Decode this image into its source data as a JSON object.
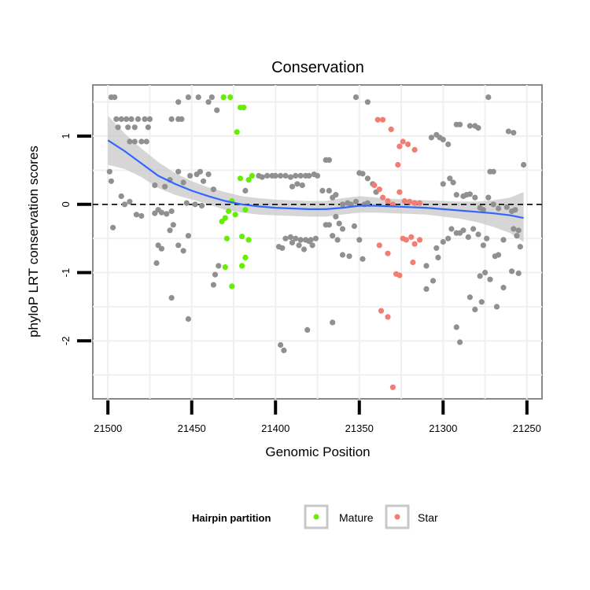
{
  "chart_data": {
    "type": "scatter",
    "title": "Conservation",
    "xlabel": "Genomic Position",
    "ylabel": "phyloP LRT conservation scores",
    "x_reversed": true,
    "xlim": [
      21509,
      21241
    ],
    "ylim": [
      -2.85,
      1.75
    ],
    "x_ticks": [
      21500,
      21450,
      21400,
      21350,
      21300,
      21250
    ],
    "y_ticks": [
      -2,
      -1,
      0,
      1
    ],
    "reference_line": {
      "y": 0,
      "style": "dashed"
    },
    "legend": {
      "title": "Hairpin partition",
      "position": "bottom",
      "entries": [
        {
          "label": "Mature",
          "color": "#66ee00"
        },
        {
          "label": "Star",
          "color": "#f27d72"
        }
      ]
    },
    "colors": {
      "background": "#66ee00",
      "other": "#909090",
      "mature": "#66ee00",
      "star": "#f27d72",
      "smooth": "#3366ff",
      "band": "#c8c8c8"
    },
    "series": [
      {
        "name": "Other",
        "color": "#909090",
        "points": [
          [
            21498,
            1.57
          ],
          [
            21496,
            1.57
          ],
          [
            21495,
            1.25
          ],
          [
            21492,
            1.25
          ],
          [
            21489,
            1.25
          ],
          [
            21486,
            1.25
          ],
          [
            21482,
            1.25
          ],
          [
            21478,
            1.25
          ],
          [
            21475,
            1.25
          ],
          [
            21494,
            1.13
          ],
          [
            21488,
            1.13
          ],
          [
            21484,
            1.13
          ],
          [
            21476,
            1.13
          ],
          [
            21462,
            1.25
          ],
          [
            21458,
            1.25
          ],
          [
            21456,
            1.25
          ],
          [
            21487,
            0.92
          ],
          [
            21484,
            0.92
          ],
          [
            21480,
            0.92
          ],
          [
            21477,
            0.92
          ],
          [
            21452,
            1.57
          ],
          [
            21458,
            1.5
          ],
          [
            21446,
            1.57
          ],
          [
            21440,
            1.5
          ],
          [
            21438,
            1.57
          ],
          [
            21435,
            1.38
          ],
          [
            21499,
            0.48
          ],
          [
            21498,
            0.34
          ],
          [
            21492,
            0.12
          ],
          [
            21490,
            0.0
          ],
          [
            21487,
            0.04
          ],
          [
            21497,
            -0.34
          ],
          [
            21483,
            -0.15
          ],
          [
            21480,
            -0.17
          ],
          [
            21472,
            -0.13
          ],
          [
            21470,
            -0.08
          ],
          [
            21468,
            -0.12
          ],
          [
            21465,
            -0.14
          ],
          [
            21462,
            -0.1
          ],
          [
            21472,
            0.28
          ],
          [
            21466,
            0.26
          ],
          [
            21463,
            0.36
          ],
          [
            21458,
            0.48
          ],
          [
            21455,
            0.32
          ],
          [
            21451,
            0.42
          ],
          [
            21447,
            0.44
          ],
          [
            21445,
            0.48
          ],
          [
            21443,
            0.34
          ],
          [
            21440,
            0.44
          ],
          [
            21437,
            0.22
          ],
          [
            21453,
            0.02
          ],
          [
            21448,
            0.0
          ],
          [
            21444,
            -0.02
          ],
          [
            21470,
            -0.6
          ],
          [
            21468,
            -0.65
          ],
          [
            21471,
            -0.86
          ],
          [
            21463,
            -0.38
          ],
          [
            21461,
            -0.3
          ],
          [
            21458,
            -0.6
          ],
          [
            21455,
            -0.68
          ],
          [
            21452,
            -0.46
          ],
          [
            21462,
            -1.37
          ],
          [
            21452,
            -1.68
          ],
          [
            21437,
            -1.18
          ],
          [
            21436,
            -1.03
          ],
          [
            21434,
            -0.9
          ],
          [
            21418,
            0.2
          ],
          [
            21410,
            0.42
          ],
          [
            21408,
            0.4
          ],
          [
            21405,
            0.42
          ],
          [
            21402,
            0.42
          ],
          [
            21400,
            0.42
          ],
          [
            21397,
            0.42
          ],
          [
            21394,
            0.42
          ],
          [
            21391,
            0.4
          ],
          [
            21388,
            0.42
          ],
          [
            21385,
            0.42
          ],
          [
            21382,
            0.42
          ],
          [
            21380,
            0.42
          ],
          [
            21377,
            0.44
          ],
          [
            21375,
            0.42
          ],
          [
            21390,
            0.26
          ],
          [
            21387,
            0.3
          ],
          [
            21384,
            0.28
          ],
          [
            21394,
            -0.5
          ],
          [
            21391,
            -0.48
          ],
          [
            21388,
            -0.5
          ],
          [
            21385,
            -0.52
          ],
          [
            21382,
            -0.52
          ],
          [
            21379,
            -0.52
          ],
          [
            21376,
            -0.5
          ],
          [
            21398,
            -0.62
          ],
          [
            21396,
            -0.64
          ],
          [
            21390,
            -0.56
          ],
          [
            21386,
            -0.6
          ],
          [
            21383,
            -0.66
          ],
          [
            21380,
            -0.54
          ],
          [
            21378,
            -0.6
          ],
          [
            21397,
            -2.06
          ],
          [
            21395,
            -2.14
          ],
          [
            21381,
            -1.84
          ],
          [
            21366,
            -1.73
          ],
          [
            21370,
            0.65
          ],
          [
            21368,
            0.65
          ],
          [
            21372,
            0.2
          ],
          [
            21368,
            0.2
          ],
          [
            21366,
            0.1
          ],
          [
            21364,
            0.14
          ],
          [
            21360,
            0.0
          ],
          [
            21357,
            0.02
          ],
          [
            21355,
            0.0
          ],
          [
            21370,
            -0.3
          ],
          [
            21368,
            -0.3
          ],
          [
            21366,
            -0.46
          ],
          [
            21364,
            -0.18
          ],
          [
            21362,
            -0.28
          ],
          [
            21360,
            -0.36
          ],
          [
            21363,
            -0.52
          ],
          [
            21360,
            -0.74
          ],
          [
            21356,
            -0.76
          ],
          [
            21353,
            -0.32
          ],
          [
            21350,
            -0.52
          ],
          [
            21348,
            -0.8
          ],
          [
            21352,
            1.57
          ],
          [
            21345,
            1.5
          ],
          [
            21350,
            0.46
          ],
          [
            21348,
            0.45
          ],
          [
            21345,
            0.38
          ],
          [
            21342,
            0.3
          ],
          [
            21340,
            0.18
          ],
          [
            21352,
            0.04
          ],
          [
            21347,
            0.0
          ],
          [
            21345,
            0.02
          ],
          [
            21307,
            0.98
          ],
          [
            21304,
            1.02
          ],
          [
            21302,
            0.98
          ],
          [
            21300,
            0.95
          ],
          [
            21297,
            0.88
          ],
          [
            21292,
            1.17
          ],
          [
            21290,
            1.17
          ],
          [
            21284,
            1.15
          ],
          [
            21281,
            1.15
          ],
          [
            21279,
            1.12
          ],
          [
            21261,
            1.07
          ],
          [
            21258,
            1.05
          ],
          [
            21273,
            1.57
          ],
          [
            21272,
            0.48
          ],
          [
            21270,
            0.48
          ],
          [
            21252,
            0.58
          ],
          [
            21300,
            0.3
          ],
          [
            21296,
            0.38
          ],
          [
            21294,
            0.32
          ],
          [
            21292,
            0.14
          ],
          [
            21288,
            0.12
          ],
          [
            21286,
            0.14
          ],
          [
            21284,
            0.15
          ],
          [
            21281,
            0.1
          ],
          [
            21278,
            -0.05
          ],
          [
            21276,
            -0.08
          ],
          [
            21273,
            0.1
          ],
          [
            21270,
            0.0
          ],
          [
            21267,
            -0.06
          ],
          [
            21262,
            -0.04
          ],
          [
            21259,
            -0.1
          ],
          [
            21257,
            -0.08
          ],
          [
            21255,
            -0.38
          ],
          [
            21304,
            -0.64
          ],
          [
            21303,
            -0.78
          ],
          [
            21300,
            -0.55
          ],
          [
            21297,
            -0.5
          ],
          [
            21295,
            -0.36
          ],
          [
            21292,
            -0.42
          ],
          [
            21290,
            -0.42
          ],
          [
            21288,
            -0.38
          ],
          [
            21285,
            -0.48
          ],
          [
            21282,
            -0.36
          ],
          [
            21279,
            -0.44
          ],
          [
            21276,
            -0.6
          ],
          [
            21274,
            -0.5
          ],
          [
            21269,
            -0.76
          ],
          [
            21267,
            -0.74
          ],
          [
            21264,
            -0.52
          ],
          [
            21258,
            -0.36
          ],
          [
            21256,
            -0.46
          ],
          [
            21254,
            -0.62
          ],
          [
            21310,
            -0.9
          ],
          [
            21310,
            -1.24
          ],
          [
            21306,
            -1.12
          ],
          [
            21292,
            -1.8
          ],
          [
            21290,
            -2.02
          ],
          [
            21284,
            -1.36
          ],
          [
            21281,
            -1.54
          ],
          [
            21277,
            -1.43
          ],
          [
            21278,
            -1.05
          ],
          [
            21275,
            -1.0
          ],
          [
            21272,
            -1.1
          ],
          [
            21268,
            -1.5
          ],
          [
            21264,
            -1.22
          ],
          [
            21259,
            -0.98
          ],
          [
            21255,
            -1.01
          ]
        ]
      },
      {
        "name": "Mature",
        "color": "#66ee00",
        "points": [
          [
            21431,
            1.57
          ],
          [
            21427,
            1.57
          ],
          [
            21421,
            1.42
          ],
          [
            21419,
            1.42
          ],
          [
            21423,
            1.06
          ],
          [
            21421,
            0.38
          ],
          [
            21416,
            0.36
          ],
          [
            21414,
            0.42
          ],
          [
            21432,
            -0.25
          ],
          [
            21430,
            -0.2
          ],
          [
            21428,
            -0.1
          ],
          [
            21426,
            0.05
          ],
          [
            21424,
            -0.15
          ],
          [
            21418,
            -0.08
          ],
          [
            21429,
            -0.5
          ],
          [
            21420,
            -0.47
          ],
          [
            21416,
            -0.52
          ],
          [
            21430,
            -0.92
          ],
          [
            21420,
            -0.9
          ],
          [
            21418,
            -0.78
          ],
          [
            21426,
            -1.2
          ]
        ]
      },
      {
        "name": "Star",
        "color": "#f27d72",
        "points": [
          [
            21339,
            1.24
          ],
          [
            21336,
            1.24
          ],
          [
            21331,
            1.1
          ],
          [
            21326,
            0.85
          ],
          [
            21324,
            0.92
          ],
          [
            21321,
            0.88
          ],
          [
            21317,
            0.8
          ],
          [
            21327,
            0.58
          ],
          [
            21341,
            0.28
          ],
          [
            21338,
            0.22
          ],
          [
            21336,
            0.1
          ],
          [
            21333,
            0.05
          ],
          [
            21330,
            0.0
          ],
          [
            21326,
            0.18
          ],
          [
            21323,
            0.05
          ],
          [
            21320,
            0.04
          ],
          [
            21317,
            0.02
          ],
          [
            21314,
            0.02
          ],
          [
            21338,
            -0.6
          ],
          [
            21333,
            -0.72
          ],
          [
            21324,
            -0.5
          ],
          [
            21322,
            -0.52
          ],
          [
            21319,
            -0.48
          ],
          [
            21317,
            -0.58
          ],
          [
            21314,
            -0.52
          ],
          [
            21318,
            -0.85
          ],
          [
            21328,
            -1.02
          ],
          [
            21326,
            -1.04
          ],
          [
            21337,
            -1.56
          ],
          [
            21333,
            -1.65
          ],
          [
            21330,
            -2.68
          ]
        ]
      }
    ],
    "smooth": [
      [
        21500,
        0.94
      ],
      [
        21490,
        0.78
      ],
      [
        21480,
        0.6
      ],
      [
        21470,
        0.42
      ],
      [
        21460,
        0.3
      ],
      [
        21450,
        0.2
      ],
      [
        21440,
        0.12
      ],
      [
        21430,
        0.05
      ],
      [
        21420,
        0.0
      ],
      [
        21410,
        -0.03
      ],
      [
        21400,
        -0.05
      ],
      [
        21390,
        -0.06
      ],
      [
        21380,
        -0.07
      ],
      [
        21370,
        -0.07
      ],
      [
        21360,
        -0.05
      ],
      [
        21350,
        -0.02
      ],
      [
        21340,
        -0.02
      ],
      [
        21330,
        -0.03
      ],
      [
        21320,
        -0.04
      ],
      [
        21310,
        -0.05
      ],
      [
        21300,
        -0.07
      ],
      [
        21290,
        -0.09
      ],
      [
        21280,
        -0.11
      ],
      [
        21270,
        -0.13
      ],
      [
        21260,
        -0.16
      ],
      [
        21252,
        -0.2
      ]
    ],
    "smooth_band": [
      [
        21500,
        1.3,
        0.58
      ],
      [
        21490,
        1.04,
        0.52
      ],
      [
        21480,
        0.82,
        0.4
      ],
      [
        21470,
        0.62,
        0.24
      ],
      [
        21460,
        0.46,
        0.14
      ],
      [
        21450,
        0.34,
        0.07
      ],
      [
        21440,
        0.25,
        0.0
      ],
      [
        21430,
        0.18,
        -0.08
      ],
      [
        21420,
        0.12,
        -0.12
      ],
      [
        21410,
        0.09,
        -0.15
      ],
      [
        21400,
        0.07,
        -0.16
      ],
      [
        21390,
        0.06,
        -0.17
      ],
      [
        21380,
        0.05,
        -0.18
      ],
      [
        21370,
        0.05,
        -0.18
      ],
      [
        21360,
        0.09,
        -0.15
      ],
      [
        21350,
        0.12,
        -0.12
      ],
      [
        21340,
        0.1,
        -0.12
      ],
      [
        21330,
        0.08,
        -0.13
      ],
      [
        21320,
        0.07,
        -0.14
      ],
      [
        21310,
        0.06,
        -0.15
      ],
      [
        21300,
        0.05,
        -0.18
      ],
      [
        21290,
        0.04,
        -0.21
      ],
      [
        21280,
        0.04,
        -0.26
      ],
      [
        21270,
        0.06,
        -0.33
      ],
      [
        21260,
        0.1,
        -0.42
      ],
      [
        21252,
        0.18,
        -0.55
      ]
    ]
  }
}
